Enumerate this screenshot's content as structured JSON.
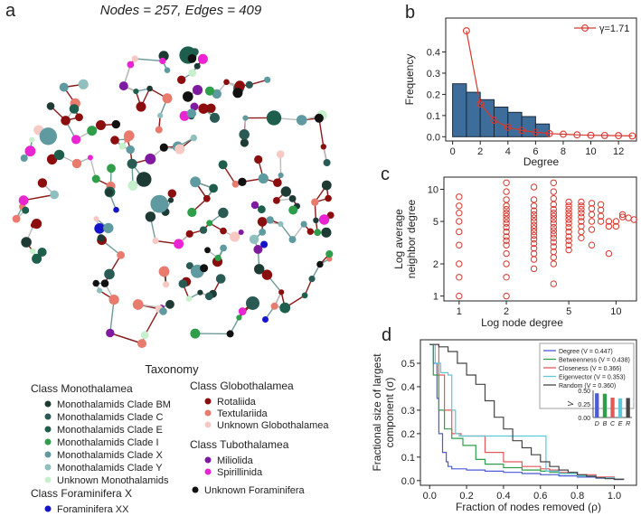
{
  "panel_labels": {
    "a": "a",
    "b": "b",
    "c": "c",
    "d": "d"
  },
  "network": {
    "title": "Nodes = 257, Edges = 409",
    "nodes": 257,
    "edges": 409,
    "legend_title": "Taxonomy"
  },
  "legend": {
    "groups": [
      {
        "label": "Class Monothalamea",
        "items": [
          {
            "label": "Monothalamids Clade BM",
            "color": "#1e3a34"
          },
          {
            "label": "Monothalamids Clade C",
            "color": "#2a5a54"
          },
          {
            "label": "Monothalamids Clade E",
            "color": "#1d5e4c"
          },
          {
            "label": "Monothalamids Clade I",
            "color": "#2e9e4a"
          },
          {
            "label": "Monothalamids Clade X",
            "color": "#5f9aa0"
          },
          {
            "label": "Monothalamids Clade Y",
            "color": "#8fbfbf"
          },
          {
            "label": "Unknown Monothalamids",
            "color": "#c7f0cc"
          }
        ]
      },
      {
        "label": "Class Globothalamea",
        "items": [
          {
            "label": "Rotaliida",
            "color": "#8b0d0d"
          },
          {
            "label": "Textulariida",
            "color": "#e87a6e"
          },
          {
            "label": "Unknown Globothalamea",
            "color": "#f6c9c4"
          }
        ]
      },
      {
        "label": "Class Tubothalamea",
        "items": [
          {
            "label": "Miliolida",
            "color": "#7f1aa0"
          },
          {
            "label": "Spirillinida",
            "color": "#ea23d3"
          }
        ]
      },
      {
        "label": "Class Foraminifera X",
        "items": [
          {
            "label": "Foraminifera XX",
            "color": "#1414c8"
          }
        ]
      },
      {
        "label": "",
        "items": [
          {
            "label": "Unknown Foraminifera",
            "color": "#111111"
          }
        ]
      }
    ]
  },
  "chart_data": [
    {
      "panel": "b",
      "type": "bar",
      "title": "",
      "xlabel": "Degree",
      "ylabel": "Frequency",
      "xlim": [
        -0.5,
        13.3
      ],
      "ylim": [
        -0.02,
        0.56
      ],
      "xticks": [
        0,
        2,
        4,
        6,
        8,
        10,
        12
      ],
      "yticks": [
        0.0,
        0.1,
        0.2,
        0.3,
        0.4
      ],
      "bar_values": [
        0.25,
        0.21,
        0.175,
        0.14,
        0.115,
        0.095,
        0.06
      ],
      "bar_categories": [
        0,
        1,
        2,
        3,
        4,
        5,
        6
      ],
      "fit_series": {
        "name": "γ=1.71",
        "x": [
          1,
          2,
          3,
          4,
          5,
          6,
          7,
          8,
          9,
          10,
          11,
          12,
          13
        ],
        "y": [
          0.5,
          0.155,
          0.078,
          0.045,
          0.03,
          0.021,
          0.015,
          0.012,
          0.009,
          0.007,
          0.006,
          0.005,
          0.004
        ]
      },
      "legend": "top-right"
    },
    {
      "panel": "c",
      "type": "scatter",
      "xlabel": "Log node degree",
      "ylabel": "Log average neighbor degree",
      "xscale": "log",
      "yscale": "log",
      "xlim": [
        0.8,
        13.5
      ],
      "ylim": [
        0.9,
        13
      ],
      "xticks": [
        1,
        2,
        5,
        10
      ],
      "yticks": [
        1,
        2,
        5,
        10
      ],
      "points": [
        [
          1,
          1
        ],
        [
          1,
          1.5
        ],
        [
          1,
          2
        ],
        [
          1,
          3
        ],
        [
          1,
          4
        ],
        [
          1,
          5
        ],
        [
          1,
          6
        ],
        [
          1,
          7
        ],
        [
          1,
          8.5
        ],
        [
          2,
          1
        ],
        [
          2,
          1.5
        ],
        [
          2,
          2
        ],
        [
          2,
          2.5
        ],
        [
          2,
          3
        ],
        [
          2,
          3.3
        ],
        [
          2,
          3.6
        ],
        [
          2,
          4
        ],
        [
          2,
          4.4
        ],
        [
          2,
          4.8
        ],
        [
          2,
          5.2
        ],
        [
          2,
          5.6
        ],
        [
          2,
          6
        ],
        [
          2,
          6.5
        ],
        [
          2,
          7
        ],
        [
          2,
          8
        ],
        [
          2,
          9.5
        ],
        [
          2,
          11.5
        ],
        [
          3,
          1.8
        ],
        [
          3,
          2.2
        ],
        [
          3,
          2.5
        ],
        [
          3,
          2.8
        ],
        [
          3,
          3.1
        ],
        [
          3,
          3.4
        ],
        [
          3,
          3.7
        ],
        [
          3,
          4
        ],
        [
          3,
          4.3
        ],
        [
          3,
          4.6
        ],
        [
          3,
          5
        ],
        [
          3,
          5.4
        ],
        [
          3,
          5.8
        ],
        [
          3,
          6.3
        ],
        [
          3,
          7
        ],
        [
          3,
          8
        ],
        [
          3,
          10.5
        ],
        [
          4,
          1.3
        ],
        [
          4,
          2
        ],
        [
          4,
          2.3
        ],
        [
          4,
          2.6
        ],
        [
          4,
          2.9
        ],
        [
          4,
          3.2
        ],
        [
          4,
          3.5
        ],
        [
          4,
          3.8
        ],
        [
          4,
          4.1
        ],
        [
          4,
          4.4
        ],
        [
          4,
          4.8
        ],
        [
          4,
          5.2
        ],
        [
          4,
          5.6
        ],
        [
          4,
          6
        ],
        [
          4,
          6.5
        ],
        [
          4,
          7.2
        ],
        [
          4,
          8.2
        ],
        [
          4,
          9.5
        ],
        [
          4,
          11.5
        ],
        [
          5,
          2.7
        ],
        [
          5,
          3
        ],
        [
          5,
          3.3
        ],
        [
          5,
          3.6
        ],
        [
          5,
          4
        ],
        [
          5,
          4.4
        ],
        [
          5,
          4.8
        ],
        [
          5,
          5.2
        ],
        [
          5,
          5.6
        ],
        [
          5,
          6
        ],
        [
          5,
          6.5
        ],
        [
          5,
          7
        ],
        [
          5,
          7.6
        ],
        [
          6,
          3.5
        ],
        [
          6,
          4
        ],
        [
          6,
          4.5
        ],
        [
          6,
          5
        ],
        [
          6,
          5.5
        ],
        [
          6,
          6
        ],
        [
          6,
          6.5
        ],
        [
          6,
          7
        ],
        [
          6,
          7.6
        ],
        [
          7,
          3
        ],
        [
          7,
          4.2
        ],
        [
          7,
          5
        ],
        [
          7,
          5.8
        ],
        [
          7,
          6.6
        ],
        [
          7,
          7.4
        ],
        [
          8,
          5
        ],
        [
          8,
          5.6
        ],
        [
          8,
          6.4
        ],
        [
          8,
          7.2
        ],
        [
          9,
          2.5
        ],
        [
          9,
          4.5
        ],
        [
          9,
          5
        ],
        [
          10,
          4.5
        ],
        [
          10,
          5
        ],
        [
          11,
          5.5
        ],
        [
          11,
          5.8
        ],
        [
          12,
          5.4
        ],
        [
          13,
          5.2
        ]
      ]
    },
    {
      "panel": "d",
      "type": "line",
      "xlabel": "Fraction of nodes removed (ρ)",
      "ylabel": "Fractional size of largest component (σ)",
      "xlim": [
        -0.05,
        1.12
      ],
      "ylim": [
        -0.02,
        0.6
      ],
      "xticks": [
        0.0,
        0.2,
        0.4,
        0.6,
        0.8,
        1.0
      ],
      "yticks": [
        0.0,
        0.1,
        0.2,
        0.3,
        0.4,
        0.5
      ],
      "legend": "top-right",
      "series": [
        {
          "name": "Degree (V = 0.447)",
          "color": "#4b5bd6",
          "x": [
            0,
            0.02,
            0.04,
            0.05,
            0.07,
            0.09,
            0.1,
            0.12,
            0.15,
            0.2,
            0.3,
            0.4,
            0.5,
            0.6,
            0.7,
            0.8,
            0.9,
            1.0,
            1.05
          ],
          "y": [
            0.58,
            0.5,
            0.35,
            0.2,
            0.12,
            0.08,
            0.06,
            0.05,
            0.05,
            0.045,
            0.04,
            0.035,
            0.03,
            0.025,
            0.02,
            0.015,
            0.01,
            0.005,
            0.004
          ]
        },
        {
          "name": "Betweenness (V = 0.438)",
          "color": "#2e9e4a",
          "x": [
            0,
            0.02,
            0.05,
            0.08,
            0.12,
            0.18,
            0.25,
            0.3,
            0.4,
            0.5,
            0.6,
            0.65,
            0.7,
            0.8,
            0.9,
            1.0,
            1.05
          ],
          "y": [
            0.58,
            0.45,
            0.3,
            0.22,
            0.18,
            0.15,
            0.09,
            0.07,
            0.055,
            0.045,
            0.04,
            0.035,
            0.03,
            0.02,
            0.012,
            0.006,
            0.004
          ]
        },
        {
          "name": "Closeness (V = 0.366)",
          "color": "#e05a5a",
          "x": [
            0,
            0.05,
            0.08,
            0.12,
            0.17,
            0.25,
            0.3,
            0.4,
            0.5,
            0.6,
            0.65,
            0.7,
            0.8,
            0.9,
            1.0,
            1.05
          ],
          "y": [
            0.58,
            0.45,
            0.3,
            0.2,
            0.19,
            0.19,
            0.12,
            0.08,
            0.06,
            0.05,
            0.045,
            0.035,
            0.025,
            0.015,
            0.007,
            0.004
          ]
        },
        {
          "name": "Eigenvector (V = 0.353)",
          "color": "#5ec7d8",
          "x": [
            0,
            0.03,
            0.06,
            0.1,
            0.12,
            0.14,
            0.16,
            0.18,
            0.25,
            0.35,
            0.5,
            0.62,
            0.63,
            0.7,
            0.8,
            0.9,
            1.0,
            1.05
          ],
          "y": [
            0.58,
            0.5,
            0.46,
            0.45,
            0.3,
            0.2,
            0.19,
            0.19,
            0.19,
            0.19,
            0.19,
            0.19,
            0.04,
            0.03,
            0.02,
            0.012,
            0.006,
            0.004
          ]
        },
        {
          "name": "Random (V = 0.360)",
          "color": "#444444",
          "x": [
            0,
            0.05,
            0.1,
            0.15,
            0.2,
            0.25,
            0.3,
            0.35,
            0.4,
            0.45,
            0.5,
            0.55,
            0.6,
            0.65,
            0.7,
            0.75,
            0.8,
            0.85,
            0.9,
            0.95,
            1.0,
            1.05
          ],
          "y": [
            0.58,
            0.57,
            0.55,
            0.5,
            0.45,
            0.41,
            0.34,
            0.27,
            0.22,
            0.17,
            0.14,
            0.11,
            0.08,
            0.06,
            0.045,
            0.035,
            0.025,
            0.018,
            0.012,
            0.008,
            0.005,
            0.004
          ]
        }
      ],
      "inset": {
        "ylabel": "V",
        "categories": [
          "D",
          "B",
          "C",
          "E",
          "R"
        ],
        "values": [
          0.447,
          0.438,
          0.366,
          0.353,
          0.36
        ],
        "colors": [
          "#4b5bd6",
          "#2e9e4a",
          "#e05a5a",
          "#5ec7d8",
          "#444444"
        ],
        "ylim": [
          0,
          0.5
        ],
        "yticks": [
          0.0,
          0.25,
          0.5
        ],
        "ytick_labels": [
          "0.00",
          "0.25",
          "0.50"
        ]
      }
    }
  ]
}
